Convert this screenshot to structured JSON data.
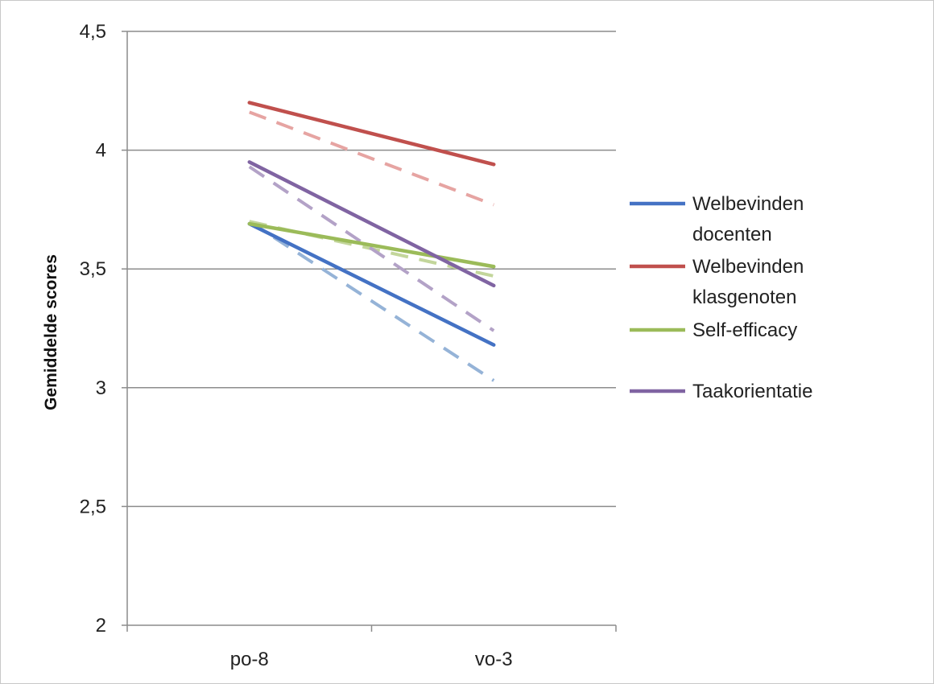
{
  "chart_data": {
    "type": "line",
    "title": "",
    "xlabel": "",
    "ylabel": "Gemiddelde scores",
    "ylim": [
      2,
      4.5
    ],
    "yticks": [
      "2",
      "2,5",
      "3",
      "3,5",
      "4",
      "4,5"
    ],
    "ytick_values": [
      2,
      2.5,
      3,
      3.5,
      4,
      4.5
    ],
    "categories": [
      "po-8",
      "vo-3"
    ],
    "grid": true,
    "legend_position": "right",
    "series": [
      {
        "name": "Welbevinden docenten",
        "legend_lines": [
          "Welbevinden",
          "docenten"
        ],
        "color": "#4472c4",
        "values": [
          3.69,
          3.18
        ]
      },
      {
        "name": "Welbevinden klasgenoten",
        "legend_lines": [
          "Welbevinden",
          "klasgenoten"
        ],
        "color": "#c0504d",
        "values": [
          4.2,
          3.94
        ]
      },
      {
        "name": "Self-efficacy",
        "legend_lines": [
          "Self-efficacy"
        ],
        "color": "#9bbb59",
        "values": [
          3.69,
          3.51
        ]
      },
      {
        "name": "Taakorientatie",
        "legend_lines": [
          "Taakorientatie"
        ],
        "color": "#8064a2",
        "values": [
          3.95,
          3.43
        ]
      }
    ],
    "dashed_series": [
      {
        "color": "#95b3d7",
        "values": [
          3.7,
          3.03
        ]
      },
      {
        "color": "#e6a4a2",
        "values": [
          4.16,
          3.77
        ]
      },
      {
        "color": "#c3d69b",
        "values": [
          3.7,
          3.47
        ]
      },
      {
        "color": "#b3a2c7",
        "values": [
          3.93,
          3.24
        ]
      }
    ]
  }
}
